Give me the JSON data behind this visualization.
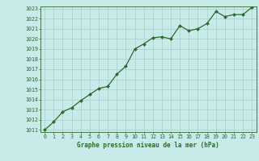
{
  "x": [
    0,
    1,
    2,
    3,
    4,
    5,
    6,
    7,
    8,
    9,
    10,
    11,
    12,
    13,
    14,
    15,
    16,
    17,
    18,
    19,
    20,
    21,
    22,
    23
  ],
  "y": [
    1011.0,
    1011.8,
    1012.8,
    1013.2,
    1013.9,
    1014.5,
    1015.1,
    1015.3,
    1016.5,
    1017.3,
    1019.0,
    1019.5,
    1020.1,
    1020.2,
    1020.0,
    1021.3,
    1020.8,
    1021.0,
    1021.5,
    1022.7,
    1022.2,
    1022.4,
    1022.4,
    1023.1
  ],
  "ylim": [
    1011,
    1023
  ],
  "yticks": [
    1011,
    1012,
    1013,
    1014,
    1015,
    1016,
    1017,
    1018,
    1019,
    1020,
    1021,
    1022,
    1023
  ],
  "xlim": [
    0,
    23
  ],
  "xticks": [
    0,
    1,
    2,
    3,
    4,
    5,
    6,
    7,
    8,
    9,
    10,
    11,
    12,
    13,
    14,
    15,
    16,
    17,
    18,
    19,
    20,
    21,
    22,
    23
  ],
  "line_color": "#2d6a2d",
  "marker_color": "#2d6a2d",
  "bg_color": "#c8eae8",
  "grid_color": "#a8cece",
  "xlabel": "Graphe pression niveau de la mer (hPa)",
  "xlabel_fontsize": 5.5,
  "tick_fontsize": 4.8,
  "line_width": 0.9,
  "marker_size": 2.0
}
